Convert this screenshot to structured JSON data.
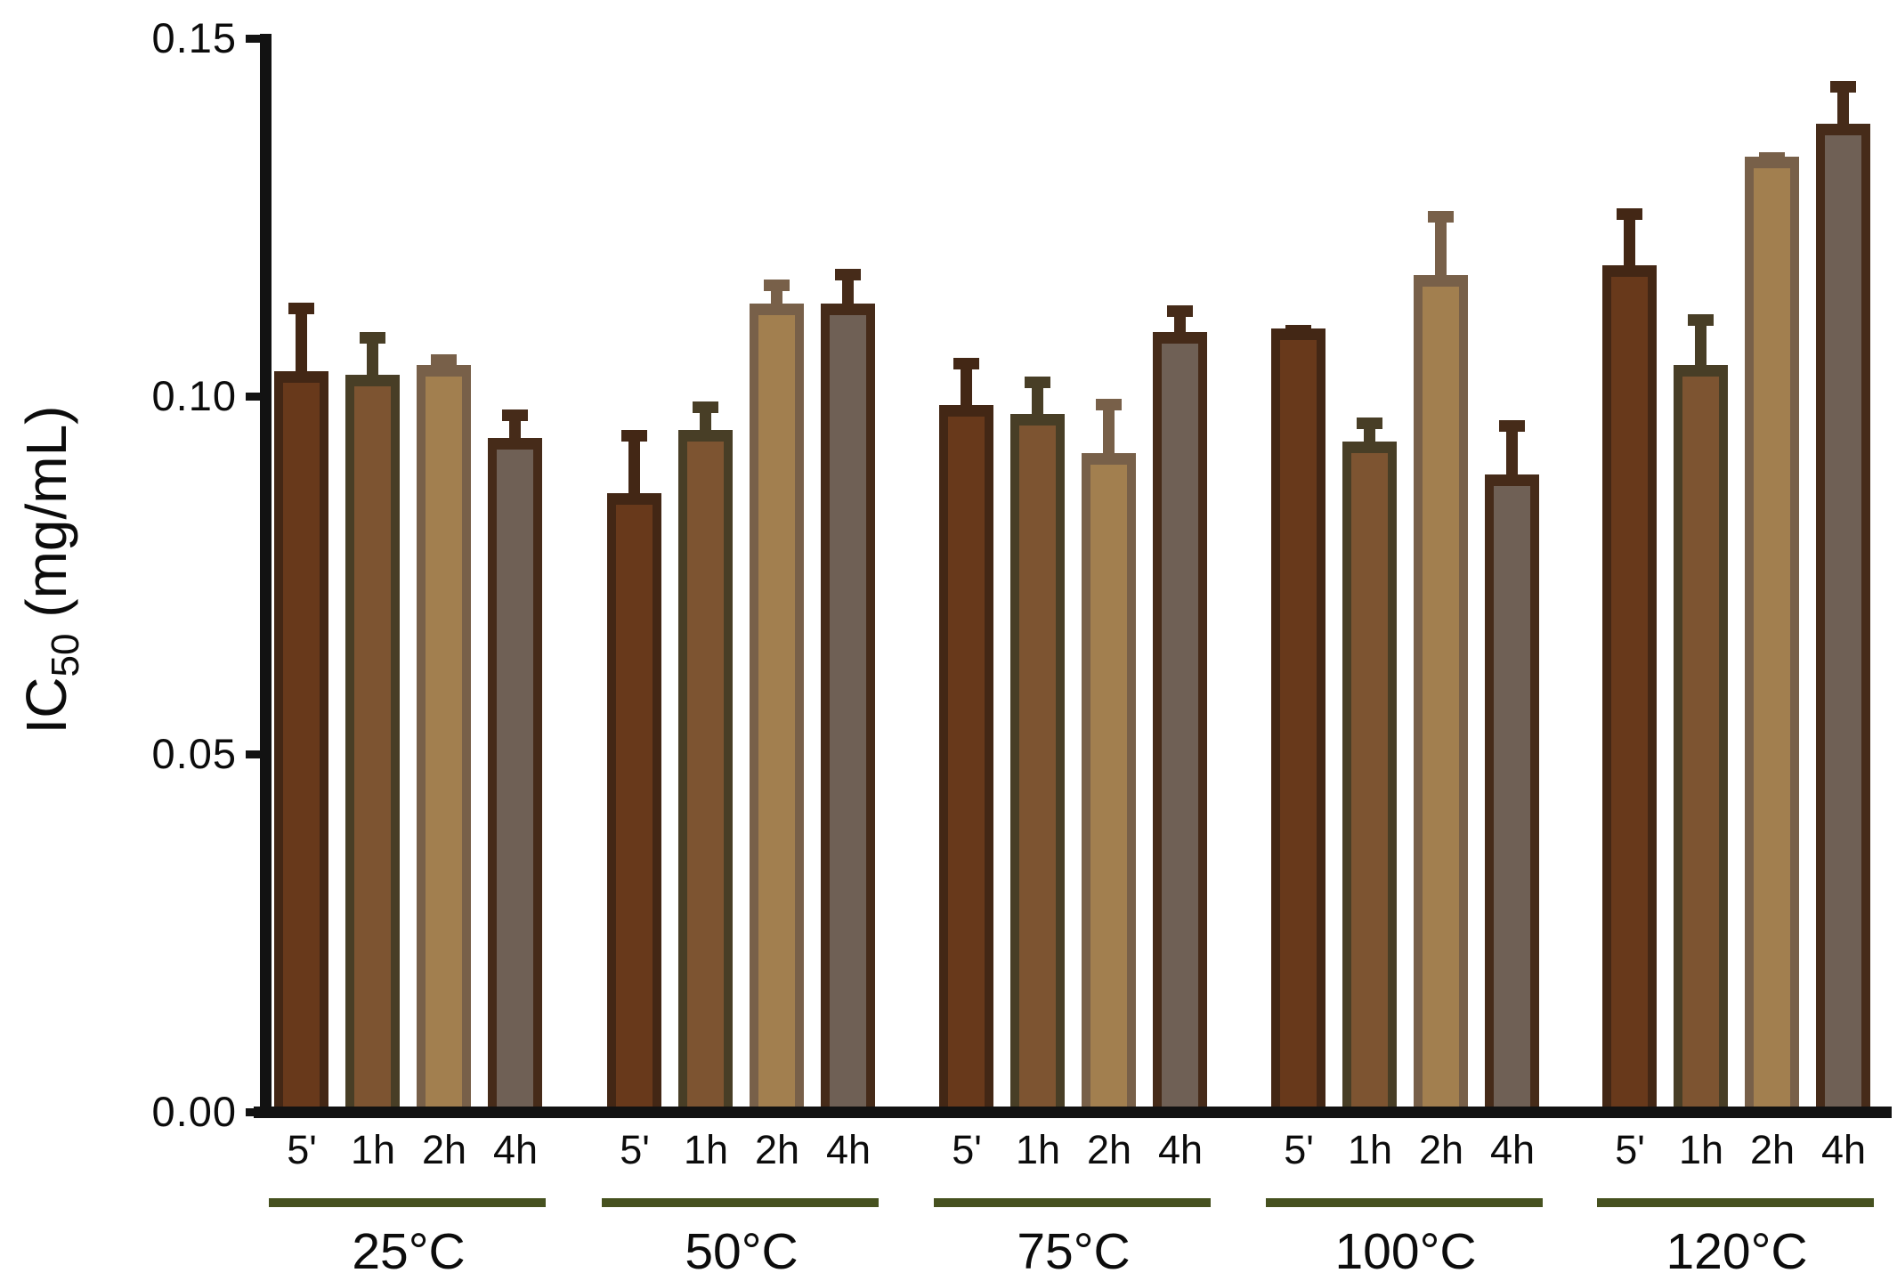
{
  "chart_data": {
    "type": "bar",
    "title": "",
    "ylabel_main": "IC",
    "ylabel_sub": "50",
    "ylabel_rest": " (mg/mL)",
    "xlabel": "",
    "ylim": [
      0,
      0.15
    ],
    "grid": false,
    "legend": "none",
    "yticks": [
      {
        "value": 0.0,
        "label": "0.00"
      },
      {
        "value": 0.05,
        "label": "0.05"
      },
      {
        "value": 0.1,
        "label": "0.10"
      },
      {
        "value": 0.15,
        "label": "0.15"
      }
    ],
    "series_styles": {
      "5'": {
        "fill": "#68391B",
        "stroke": "#432715"
      },
      "1h": {
        "fill": "#7D5431",
        "stroke": "#483E26"
      },
      "2h": {
        "fill": "#A27F4F",
        "stroke": "#786049"
      },
      "4h": {
        "fill": "#6F6055",
        "stroke": "#462B19"
      }
    },
    "group_line_color": "#46511F",
    "groups": [
      {
        "label": "25°C",
        "bars": [
          {
            "time": "5'",
            "value": 0.1035,
            "error": 0.0096
          },
          {
            "time": "1h",
            "value": 0.103,
            "error": 0.006
          },
          {
            "time": "2h",
            "value": 0.1043,
            "error": 0.0016
          },
          {
            "time": "4h",
            "value": 0.0941,
            "error": 0.004
          }
        ]
      },
      {
        "label": "50°C",
        "bars": [
          {
            "time": "5'",
            "value": 0.0864,
            "error": 0.0089
          },
          {
            "time": "1h",
            "value": 0.0953,
            "error": 0.0039
          },
          {
            "time": "2h",
            "value": 0.1129,
            "error": 0.0034
          },
          {
            "time": "4h",
            "value": 0.1129,
            "error": 0.0049
          }
        ]
      },
      {
        "label": "75°C",
        "bars": [
          {
            "time": "5'",
            "value": 0.0988,
            "error": 0.0065
          },
          {
            "time": "1h",
            "value": 0.0975,
            "error": 0.0052
          },
          {
            "time": "2h",
            "value": 0.092,
            "error": 0.0076
          },
          {
            "time": "4h",
            "value": 0.1089,
            "error": 0.0038
          }
        ]
      },
      {
        "label": "100°C",
        "bars": [
          {
            "time": "5'",
            "value": 0.1094,
            "error": 0.0005
          },
          {
            "time": "1h",
            "value": 0.0936,
            "error": 0.0034
          },
          {
            "time": "2h",
            "value": 0.1169,
            "error": 0.009
          },
          {
            "time": "4h",
            "value": 0.089,
            "error": 0.0076
          }
        ]
      },
      {
        "label": "120°C",
        "bars": [
          {
            "time": "5'",
            "value": 0.1183,
            "error": 0.008
          },
          {
            "time": "1h",
            "value": 0.1044,
            "error": 0.007
          },
          {
            "time": "2h",
            "value": 0.1335,
            "error": 0.0006
          },
          {
            "time": "4h",
            "value": 0.138,
            "error": 0.006
          }
        ]
      }
    ]
  }
}
